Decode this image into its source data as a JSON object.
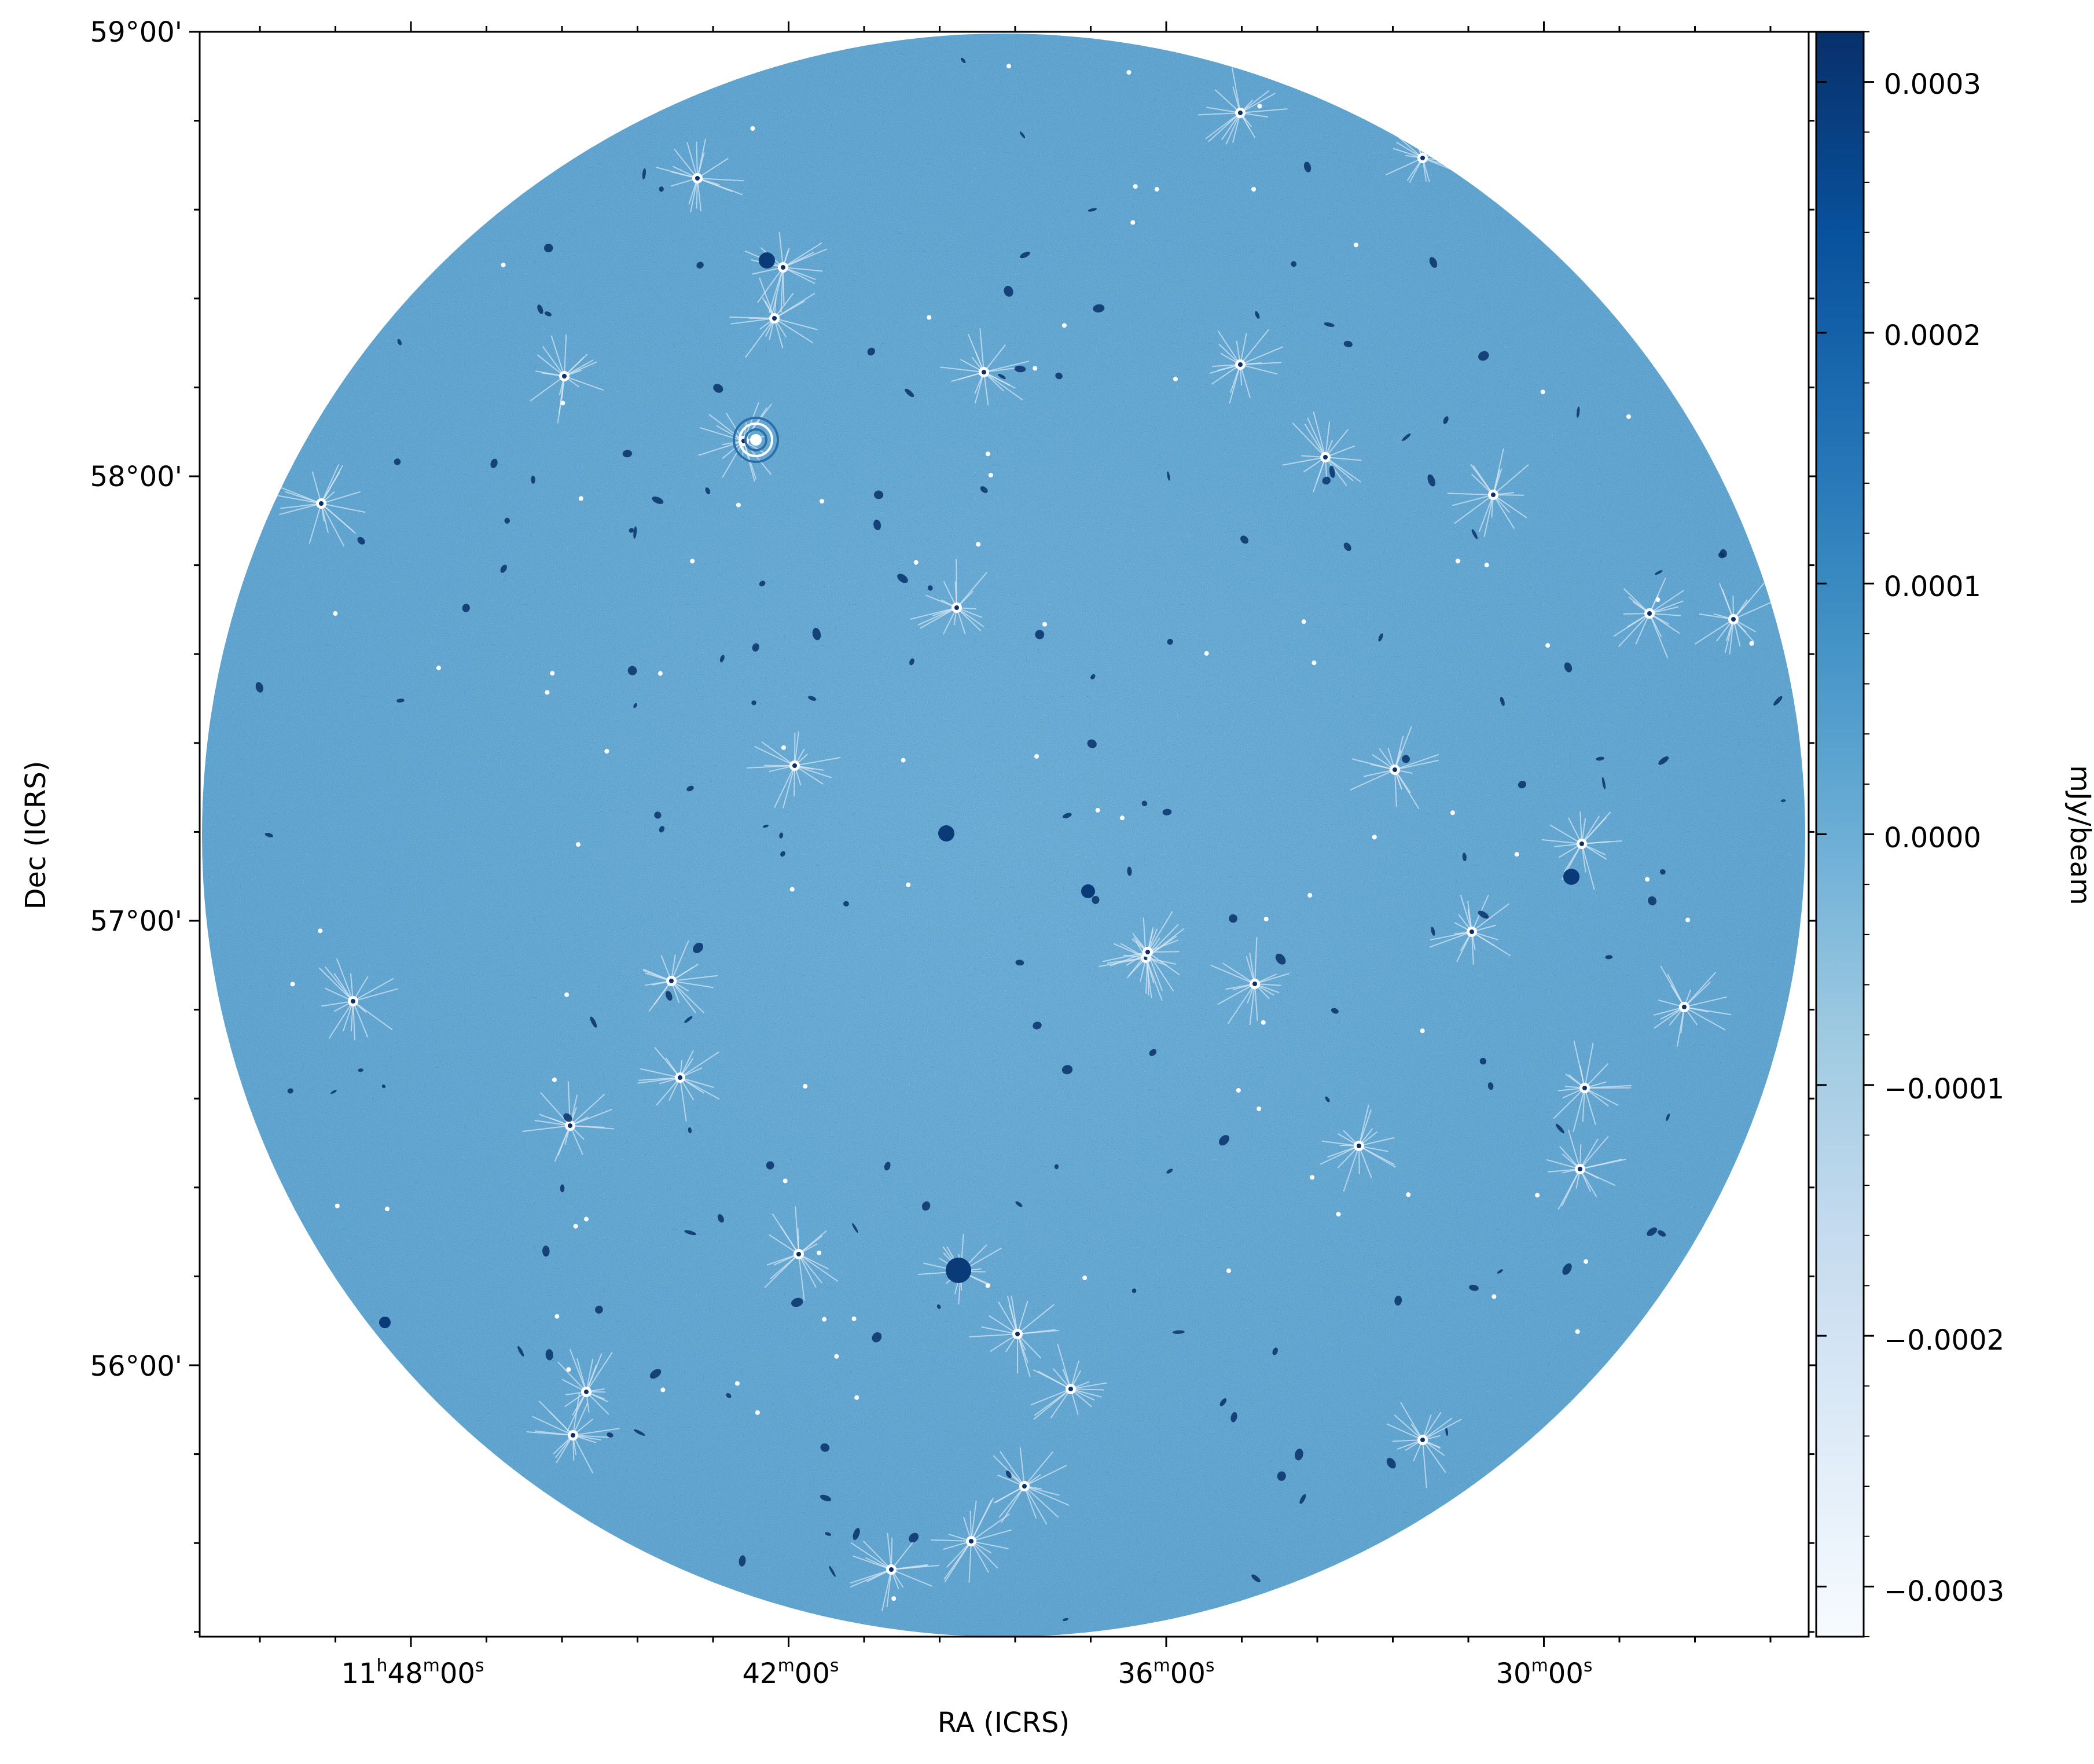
{
  "figure": {
    "description_type": "radio-astronomy sky image (WCS projection)",
    "colormap": "Blues",
    "colors": {
      "field": "#6aaed6",
      "field_light": "#9ecae1",
      "field_dark": "#08306b",
      "cmap_stops": [
        "#f7fbff",
        "#deebf7",
        "#c6dbef",
        "#9ecae1",
        "#6baed6",
        "#4292c6",
        "#2171b5",
        "#08519c",
        "#08306b"
      ]
    }
  },
  "axes": {
    "xlabel": "RA (ICRS)",
    "ylabel": "Dec (ICRS)",
    "x_ticks": [
      {
        "label_h": "11",
        "label_hsup": "h",
        "label_m": "48",
        "label_msup": "m",
        "label_s": "00",
        "label_ssup": "s",
        "full": "11h48m00s"
      },
      {
        "label_m": "42",
        "label_msup": "m",
        "label_s": "00",
        "label_ssup": "s",
        "full": "42m00s"
      },
      {
        "label_m": "36",
        "label_msup": "m",
        "label_s": "00",
        "label_ssup": "s",
        "full": "36m00s"
      },
      {
        "label_m": "30",
        "label_msup": "m",
        "label_s": "00",
        "label_ssup": "s",
        "full": "30m00s"
      }
    ],
    "y_ticks": [
      "59°00'",
      "58°00'",
      "57°00'",
      "56°00'"
    ]
  },
  "colorbar": {
    "label": "mJy/beam",
    "range": [
      -0.00032,
      0.00032
    ],
    "ticks": [
      "0.0003",
      "0.0002",
      "0.0001",
      "0.0000",
      "−0.0001",
      "−0.0002",
      "−0.0003"
    ],
    "tick_values": [
      0.0003,
      0.0002,
      0.0001,
      0.0,
      -0.0001,
      -0.0002,
      -0.0003
    ]
  }
}
